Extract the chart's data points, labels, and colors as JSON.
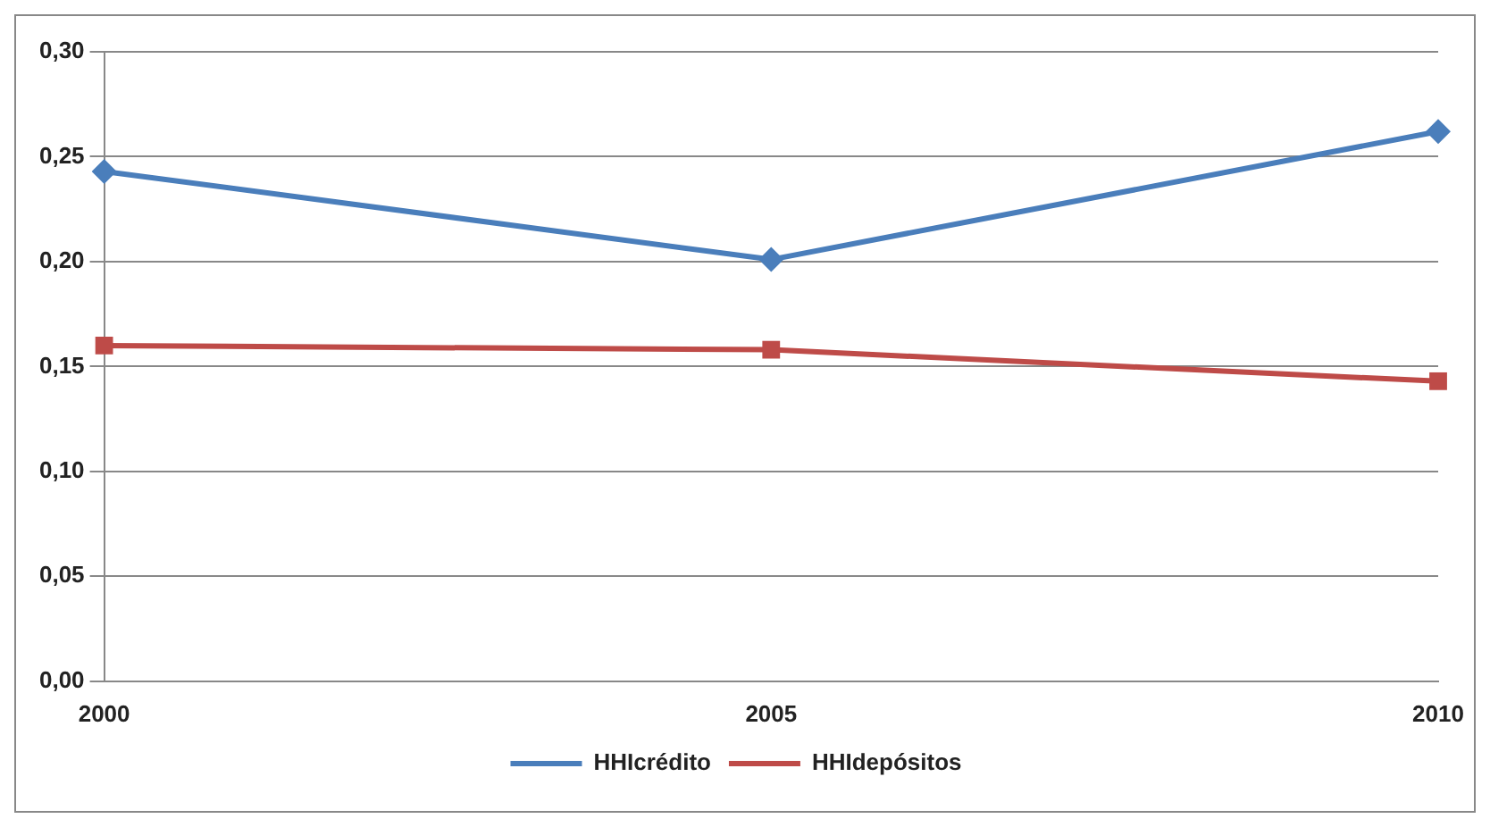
{
  "chart_data": {
    "type": "line",
    "categories": [
      "2000",
      "2005",
      "2010"
    ],
    "series": [
      {
        "name": "HHIcrédito",
        "color": "#4a7ebb",
        "marker": "diamond",
        "values": [
          0.243,
          0.201,
          0.262
        ]
      },
      {
        "name": "HHIdepósitos",
        "color": "#be4b48",
        "marker": "square",
        "values": [
          0.16,
          0.158,
          0.143
        ]
      }
    ],
    "ylim": [
      0,
      0.3
    ],
    "yticks": [
      {
        "value": 0,
        "label": "0,00"
      },
      {
        "value": 0.05,
        "label": "0,05"
      },
      {
        "value": 0.1,
        "label": "0,10"
      },
      {
        "value": 0.15,
        "label": "0,15"
      },
      {
        "value": 0.2,
        "label": "0,20"
      },
      {
        "value": 0.25,
        "label": "0,25"
      },
      {
        "value": 0.3,
        "label": "0,30"
      }
    ],
    "grid": "y",
    "legend": "bottom",
    "line_style": "solid"
  }
}
